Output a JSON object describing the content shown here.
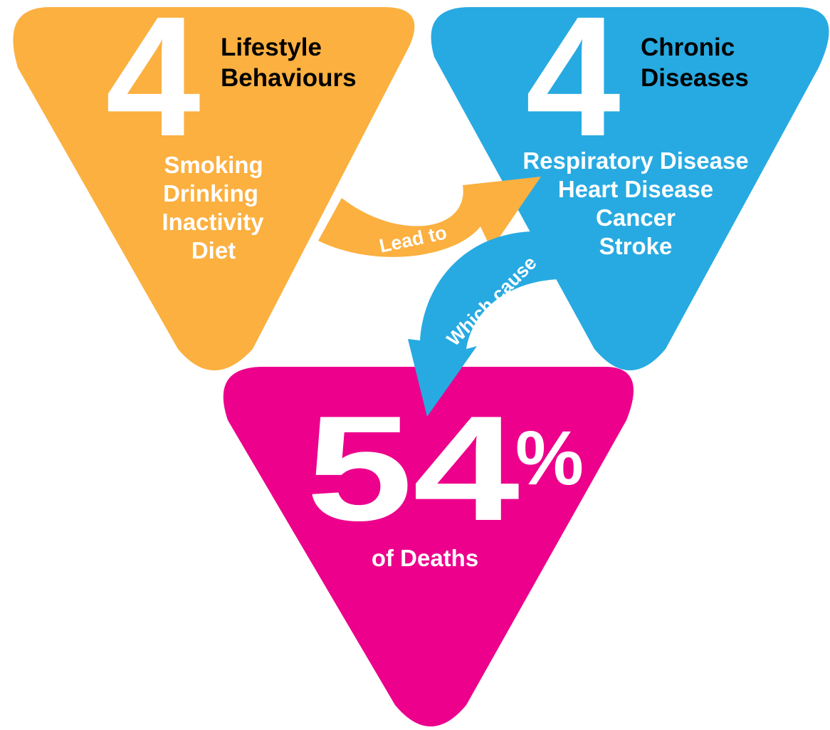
{
  "colors": {
    "lifestyle": "#FBB040",
    "chronic": "#27AAE1",
    "deaths": "#EC008C",
    "title_text": "#000000",
    "body_text": "#FFFFFF"
  },
  "lifestyle": {
    "number": "4",
    "title_line1": "Lifestyle",
    "title_line2": "Behaviours",
    "items": [
      "Smoking",
      "Drinking",
      "Inactivity",
      "Diet"
    ]
  },
  "chronic": {
    "number": "4",
    "title_line1": "Chronic",
    "title_line2": "Diseases",
    "items": [
      "Respiratory Disease",
      "Heart Disease",
      "Cancer",
      "Stroke"
    ]
  },
  "deaths": {
    "number": "54",
    "percent_sign": "%",
    "caption": "of Deaths"
  },
  "arrows": {
    "lead_to": "Lead to",
    "which_cause": "Which cause"
  }
}
